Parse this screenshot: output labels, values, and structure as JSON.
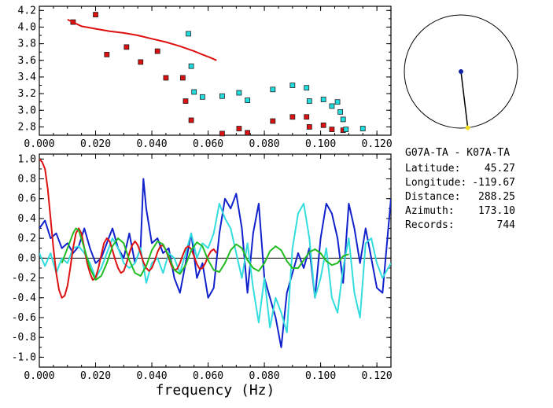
{
  "chart_data": [
    {
      "type": "scatter",
      "xlabel": "",
      "ylabel": "",
      "xlim": [
        0.0,
        0.125
      ],
      "ylim": [
        2.7,
        4.25
      ],
      "xticks": [
        "0.000",
        "0.020",
        "0.040",
        "0.060",
        "0.080",
        "0.100",
        "0.120"
      ],
      "yticks": [
        "2.8",
        "3.0",
        "3.2",
        "3.4",
        "3.6",
        "3.8",
        "4.0",
        "4.2"
      ],
      "xtick_values": [
        0.0,
        0.02,
        0.04,
        0.06,
        0.08,
        0.1,
        0.12
      ],
      "ytick_values": [
        2.8,
        3.0,
        3.2,
        3.4,
        3.6,
        3.8,
        4.0,
        4.2
      ],
      "series": [
        {
          "color": "#dd1111",
          "marker": "square",
          "points": [
            [
              0.012,
              4.06
            ],
            [
              0.02,
              4.15
            ],
            [
              0.024,
              3.67
            ],
            [
              0.031,
              3.76
            ],
            [
              0.036,
              3.58
            ],
            [
              0.042,
              3.71
            ],
            [
              0.045,
              3.39
            ],
            [
              0.051,
              3.39
            ],
            [
              0.052,
              3.11
            ],
            [
              0.054,
              2.88
            ],
            [
              0.065,
              2.72
            ],
            [
              0.071,
              2.78
            ],
            [
              0.074,
              2.73
            ],
            [
              0.083,
              2.87
            ],
            [
              0.09,
              2.92
            ],
            [
              0.095,
              2.92
            ],
            [
              0.096,
              2.8
            ],
            [
              0.101,
              2.82
            ],
            [
              0.104,
              2.77
            ],
            [
              0.108,
              2.76
            ]
          ]
        },
        {
          "color": "#22dddd",
          "marker": "square",
          "points": [
            [
              0.053,
              3.92
            ],
            [
              0.054,
              3.53
            ],
            [
              0.055,
              3.22
            ],
            [
              0.058,
              3.16
            ],
            [
              0.065,
              3.17
            ],
            [
              0.071,
              3.21
            ],
            [
              0.074,
              3.12
            ],
            [
              0.083,
              3.25
            ],
            [
              0.09,
              3.3
            ],
            [
              0.095,
              3.27
            ],
            [
              0.096,
              3.11
            ],
            [
              0.101,
              3.13
            ],
            [
              0.104,
              3.05
            ],
            [
              0.106,
              3.1
            ],
            [
              0.107,
              2.98
            ],
            [
              0.108,
              2.89
            ],
            [
              0.109,
              2.77
            ],
            [
              0.115,
              2.78
            ]
          ]
        },
        {
          "color": "#dd1111",
          "marker": "none",
          "line": true,
          "points": [
            [
              0.01,
              4.09
            ],
            [
              0.015,
              4.01
            ],
            [
              0.02,
              3.98
            ],
            [
              0.025,
              3.95
            ],
            [
              0.03,
              3.93
            ],
            [
              0.035,
              3.9
            ],
            [
              0.04,
              3.86
            ],
            [
              0.045,
              3.82
            ],
            [
              0.05,
              3.77
            ],
            [
              0.055,
              3.71
            ],
            [
              0.058,
              3.67
            ],
            [
              0.061,
              3.63
            ],
            [
              0.063,
              3.6
            ]
          ]
        }
      ]
    },
    {
      "type": "line",
      "xlabel": "frequency (Hz)",
      "ylabel": "",
      "xlim": [
        0.0,
        0.125
      ],
      "ylim": [
        -1.1,
        1.05
      ],
      "xticks": [
        "0.000",
        "0.020",
        "0.040",
        "0.060",
        "0.080",
        "0.100",
        "0.120"
      ],
      "yticks": [
        "1.0",
        "0.8",
        "0.6",
        "0.4",
        "0.2",
        "0.0",
        "-0.2",
        "-0.4",
        "-0.6",
        "-0.8",
        "-1.0"
      ],
      "xtick_values": [
        0.0,
        0.02,
        0.04,
        0.06,
        0.08,
        0.1,
        0.12
      ],
      "ytick_values": [
        1.0,
        0.8,
        0.6,
        0.4,
        0.2,
        0.0,
        -0.2,
        -0.4,
        -0.6,
        -0.8,
        -1.0
      ],
      "series": [
        {
          "color": "#1122cc",
          "x": [
            0.0,
            0.002,
            0.004,
            0.006,
            0.008,
            0.01,
            0.012,
            0.014,
            0.016,
            0.018,
            0.02,
            0.022,
            0.024,
            0.026,
            0.028,
            0.03,
            0.032,
            0.034,
            0.036,
            0.037,
            0.038,
            0.04,
            0.042,
            0.044,
            0.046,
            0.048,
            0.05,
            0.052,
            0.054,
            0.056,
            0.058,
            0.06,
            0.062,
            0.064,
            0.066,
            0.068,
            0.07,
            0.072,
            0.074,
            0.076,
            0.078,
            0.08,
            0.082,
            0.084,
            0.086,
            0.088,
            0.09,
            0.092,
            0.094,
            0.096,
            0.098,
            0.1,
            0.102,
            0.104,
            0.106,
            0.108,
            0.11,
            0.112,
            0.114,
            0.116,
            0.118,
            0.12,
            0.122,
            0.125
          ],
          "y": [
            0.3,
            0.38,
            0.2,
            0.25,
            0.1,
            0.15,
            0.05,
            0.12,
            0.3,
            0.1,
            -0.05,
            0.0,
            0.15,
            0.3,
            0.1,
            0.0,
            0.25,
            -0.05,
            0.1,
            0.8,
            0.5,
            0.15,
            0.2,
            0.05,
            0.1,
            -0.2,
            -0.35,
            -0.05,
            0.25,
            -0.2,
            -0.05,
            -0.4,
            -0.3,
            0.25,
            0.6,
            0.5,
            0.65,
            0.3,
            -0.35,
            0.25,
            0.55,
            -0.2,
            -0.4,
            -0.6,
            -0.9,
            -0.35,
            -0.15,
            0.05,
            -0.1,
            0.1,
            -0.4,
            0.2,
            0.55,
            0.45,
            0.2,
            -0.25,
            0.55,
            0.3,
            -0.05,
            0.3,
            0.0,
            -0.3,
            -0.35,
            0.6
          ]
        },
        {
          "color": "#33dddd",
          "x": [
            0.0,
            0.002,
            0.004,
            0.006,
            0.008,
            0.01,
            0.012,
            0.014,
            0.016,
            0.018,
            0.02,
            0.022,
            0.024,
            0.026,
            0.028,
            0.03,
            0.032,
            0.034,
            0.036,
            0.038,
            0.04,
            0.042,
            0.044,
            0.046,
            0.048,
            0.05,
            0.052,
            0.054,
            0.056,
            0.058,
            0.06,
            0.062,
            0.064,
            0.066,
            0.068,
            0.07,
            0.072,
            0.074,
            0.076,
            0.078,
            0.08,
            0.082,
            0.084,
            0.086,
            0.088,
            0.09,
            0.092,
            0.094,
            0.096,
            0.098,
            0.1,
            0.102,
            0.104,
            0.106,
            0.108,
            0.11,
            0.112,
            0.114,
            0.116,
            0.118,
            0.12,
            0.122,
            0.125
          ],
          "y": [
            0.05,
            -0.08,
            0.05,
            -0.15,
            0.0,
            -0.05,
            0.1,
            0.12,
            0.05,
            -0.05,
            -0.2,
            -0.1,
            0.05,
            0.2,
            0.1,
            -0.05,
            -0.1,
            -0.05,
            0.1,
            -0.25,
            -0.05,
            0.0,
            -0.15,
            0.05,
            0.0,
            -0.15,
            0.05,
            0.25,
            0.0,
            0.15,
            0.1,
            0.25,
            0.55,
            0.4,
            0.3,
            0.05,
            -0.2,
            0.15,
            -0.3,
            -0.65,
            -0.2,
            -0.7,
            -0.4,
            -0.55,
            -0.75,
            0.1,
            0.45,
            0.55,
            0.2,
            -0.4,
            -0.2,
            0.1,
            -0.4,
            -0.55,
            -0.1,
            0.2,
            -0.35,
            -0.6,
            0.15,
            0.2,
            -0.05,
            -0.2,
            -0.05
          ]
        },
        {
          "color": "#dd1111",
          "x": [
            0.0,
            0.001,
            0.002,
            0.003,
            0.004,
            0.005,
            0.006,
            0.007,
            0.008,
            0.009,
            0.01,
            0.011,
            0.012,
            0.013,
            0.014,
            0.015,
            0.016,
            0.017,
            0.018,
            0.019,
            0.02,
            0.021,
            0.022,
            0.023,
            0.024,
            0.025,
            0.026,
            0.027,
            0.028,
            0.029,
            0.03,
            0.031,
            0.032,
            0.033,
            0.034,
            0.035,
            0.036,
            0.037,
            0.038,
            0.039,
            0.04,
            0.041,
            0.042,
            0.043,
            0.044,
            0.045,
            0.046,
            0.047,
            0.048,
            0.049,
            0.05,
            0.051,
            0.052,
            0.053,
            0.054,
            0.055,
            0.056,
            0.057,
            0.058,
            0.059,
            0.06,
            0.061,
            0.062,
            0.063
          ],
          "y": [
            1.0,
            0.97,
            0.9,
            0.7,
            0.4,
            0.1,
            -0.15,
            -0.32,
            -0.4,
            -0.38,
            -0.28,
            -0.1,
            0.1,
            0.25,
            0.3,
            0.25,
            0.1,
            -0.05,
            -0.15,
            -0.22,
            -0.2,
            -0.1,
            0.03,
            0.15,
            0.2,
            0.17,
            0.08,
            -0.02,
            -0.1,
            -0.15,
            -0.13,
            -0.05,
            0.05,
            0.13,
            0.17,
            0.13,
            0.05,
            -0.04,
            -0.1,
            -0.13,
            -0.1,
            -0.03,
            0.06,
            0.12,
            0.13,
            0.08,
            0.0,
            -0.08,
            -0.12,
            -0.11,
            -0.05,
            0.03,
            0.1,
            0.12,
            0.09,
            0.02,
            -0.06,
            -0.11,
            -0.1,
            -0.05,
            0.02,
            0.07,
            0.09,
            0.05
          ]
        },
        {
          "color": "#22bb22",
          "x": [
            0.008,
            0.01,
            0.012,
            0.013,
            0.014,
            0.016,
            0.018,
            0.02,
            0.022,
            0.024,
            0.026,
            0.028,
            0.03,
            0.032,
            0.034,
            0.036,
            0.038,
            0.04,
            0.042,
            0.044,
            0.046,
            0.048,
            0.05,
            0.052,
            0.054,
            0.056,
            0.058,
            0.06,
            0.062,
            0.064,
            0.066,
            0.068,
            0.07,
            0.072,
            0.074,
            0.076,
            0.078,
            0.08,
            0.082,
            0.084,
            0.086,
            0.088,
            0.09,
            0.092,
            0.094,
            0.096,
            0.098,
            0.1,
            0.102,
            0.104,
            0.106,
            0.108,
            0.11
          ],
          "y": [
            -0.05,
            0.1,
            0.25,
            0.3,
            0.28,
            0.1,
            -0.1,
            -0.22,
            -0.18,
            -0.05,
            0.12,
            0.2,
            0.15,
            -0.02,
            -0.15,
            -0.18,
            -0.08,
            0.08,
            0.17,
            0.14,
            0.02,
            -0.12,
            -0.16,
            -0.07,
            0.08,
            0.16,
            0.12,
            -0.02,
            -0.12,
            -0.14,
            -0.05,
            0.08,
            0.14,
            0.1,
            -0.02,
            -0.1,
            -0.13,
            -0.05,
            0.07,
            0.12,
            0.08,
            -0.03,
            -0.1,
            -0.1,
            -0.02,
            0.06,
            0.09,
            0.05,
            -0.03,
            -0.07,
            -0.05,
            0.02,
            0.04
          ]
        }
      ]
    }
  ],
  "inset": {
    "azimuth_deg": 173.1,
    "ring_color": "#000000",
    "center_dot_color": "#1122aa",
    "end_dot_color": "#eedd22"
  },
  "info": {
    "title": "G07A-TA - K07A-TA",
    "rows": [
      {
        "label": "Latitude:",
        "value": "45.27"
      },
      {
        "label": "Longitude:",
        "value": "-119.67"
      },
      {
        "label": "Distance:",
        "value": "288.25"
      },
      {
        "label": "Azimuth:",
        "value": "173.10"
      },
      {
        "label": "Records:",
        "value": "744"
      }
    ]
  }
}
